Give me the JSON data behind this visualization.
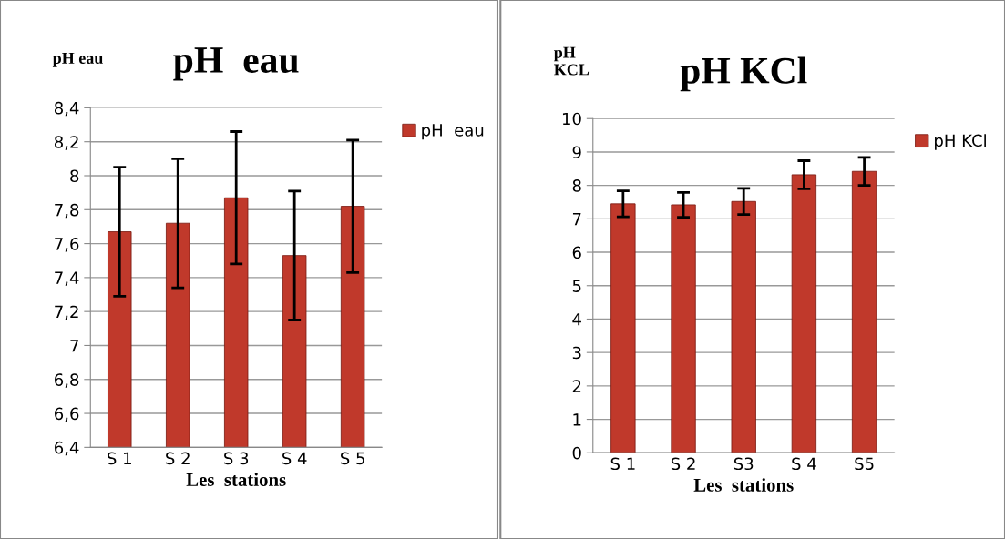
{
  "chart_data": [
    {
      "type": "bar",
      "title": "pH  eau",
      "ylabel": "pH eau",
      "xlabel": "Les  stations",
      "categories": [
        "S 1",
        "S 2",
        "S 3",
        "S 4",
        "S 5"
      ],
      "series": [
        {
          "name": "pH  eau",
          "color": "#c0392b",
          "values": [
            7.67,
            7.72,
            7.87,
            7.53,
            7.82
          ],
          "errors": [
            0.38,
            0.38,
            0.39,
            0.38,
            0.39
          ]
        }
      ],
      "ylim": [
        6.4,
        8.4
      ],
      "yticks": [
        {
          "value": 6.4,
          "label": "6,4"
        },
        {
          "value": 6.6,
          "label": "6,6"
        },
        {
          "value": 6.8,
          "label": "6,8"
        },
        7,
        {
          "value": 7.2,
          "label": "7,2"
        },
        {
          "value": 7.4,
          "label": "7,4"
        },
        {
          "value": 7.6,
          "label": "7,6"
        },
        {
          "value": 7.8,
          "label": "7,8"
        },
        8,
        {
          "value": 8.2,
          "label": "8,2"
        },
        {
          "value": 8.4,
          "label": "8,4"
        }
      ],
      "grid": "y",
      "legend": "right"
    },
    {
      "type": "bar",
      "title": "pH KCl",
      "ylabel": "pH\nKCL",
      "xlabel": "Les  stations",
      "categories": [
        "S 1",
        "S 2",
        "S3",
        "S 4",
        "S5"
      ],
      "series": [
        {
          "name": "pH KCl",
          "color": "#c0392b",
          "values": [
            7.45,
            7.42,
            7.52,
            8.32,
            8.42
          ],
          "errors": [
            0.39,
            0.37,
            0.39,
            0.42,
            0.42
          ]
        }
      ],
      "ylim": [
        0,
        10
      ],
      "yticks": [
        0,
        1,
        2,
        3,
        4,
        5,
        6,
        7,
        8,
        9,
        10
      ],
      "grid": "y",
      "legend": "right"
    }
  ]
}
